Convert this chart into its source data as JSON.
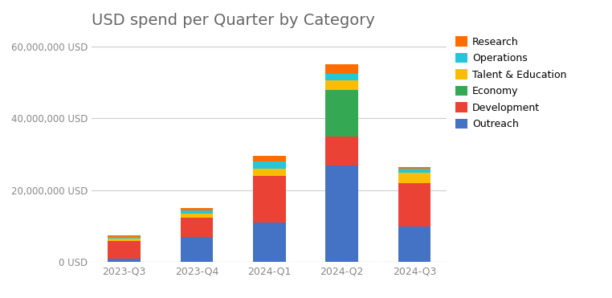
{
  "quarters": [
    "2023-Q3",
    "2023-Q4",
    "2024-Q1",
    "2024-Q2",
    "2024-Q3"
  ],
  "categories": [
    "Outreach",
    "Development",
    "Economy",
    "Talent & Education",
    "Operations",
    "Research"
  ],
  "colors": [
    "#4472C4",
    "#EA4335",
    "#34A853",
    "#FBBC04",
    "#26C6DA",
    "#FF6D00"
  ],
  "values": {
    "Outreach": [
      1000000,
      7000000,
      11000000,
      27000000,
      10000000
    ],
    "Development": [
      5000000,
      5500000,
      13000000,
      8000000,
      12000000
    ],
    "Economy": [
      0,
      0,
      0,
      13000000,
      0
    ],
    "Talent & Education": [
      500000,
      1000000,
      2000000,
      2500000,
      3000000
    ],
    "Operations": [
      500000,
      1000000,
      2000000,
      2000000,
      1000000
    ],
    "Research": [
      500000,
      500000,
      1500000,
      2500000,
      500000
    ]
  },
  "title": "USD spend per Quarter by Category",
  "ylim": [
    0,
    63000000
  ],
  "yticks": [
    0,
    20000000,
    40000000,
    60000000
  ],
  "ytick_labels": [
    "0 USD",
    "20,000,000 USD",
    "40,000,000 USD",
    "60,000,000 USD"
  ],
  "title_color": "#666666",
  "title_fontsize": 14,
  "tick_color": "#888888",
  "grid_color": "#cccccc",
  "background_color": "#ffffff",
  "bar_width": 0.45
}
